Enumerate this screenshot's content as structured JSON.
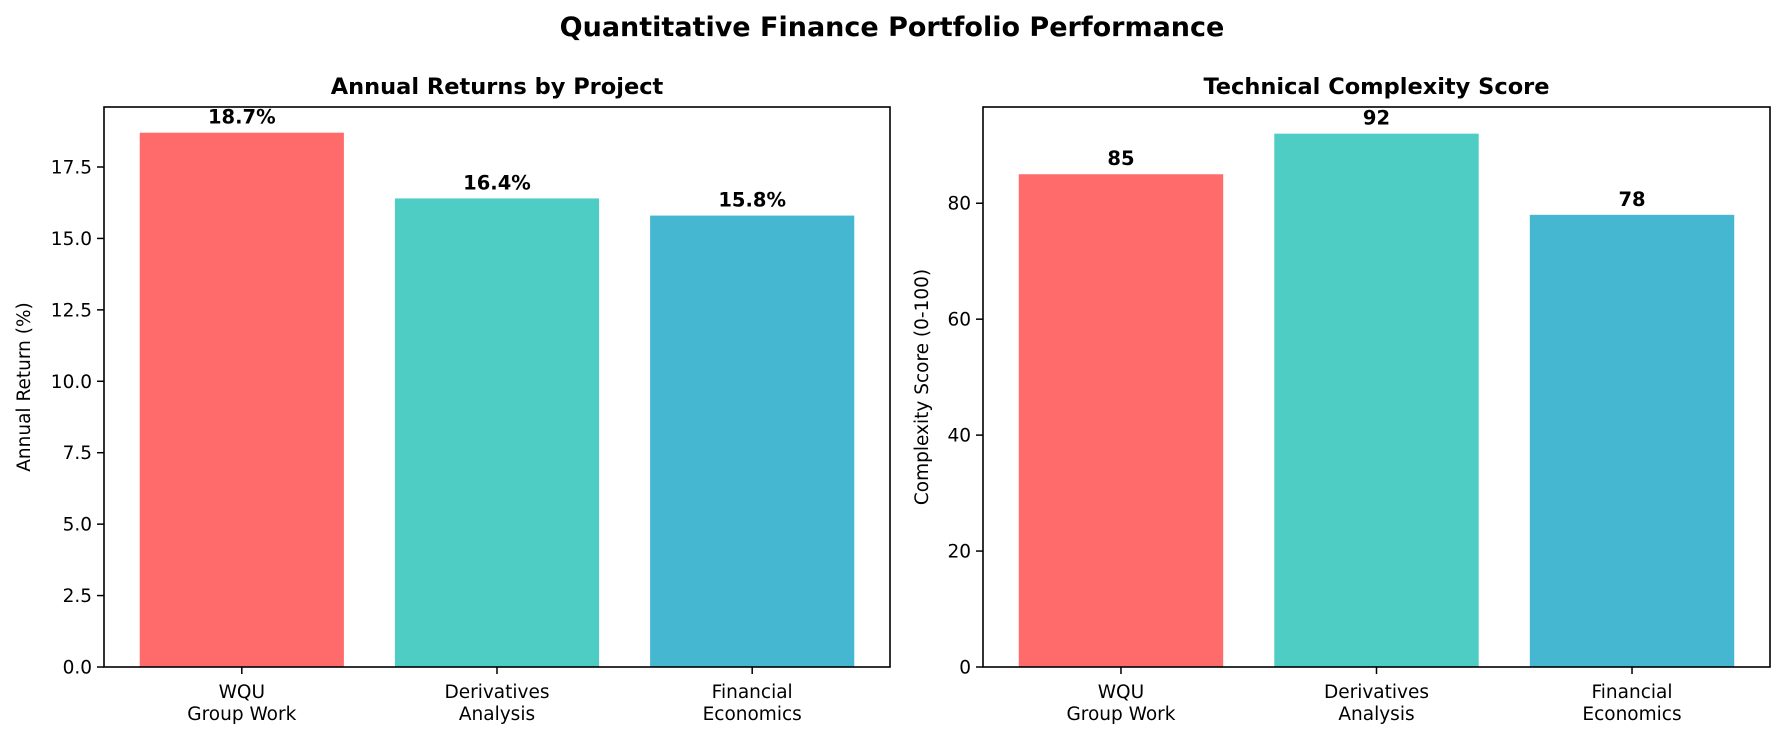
{
  "figure": {
    "title": "Quantitative Finance Portfolio Performance"
  },
  "chart_data": [
    {
      "type": "bar",
      "title": "Annual Returns by Project",
      "xlabel": "",
      "ylabel": "Annual Return (%)",
      "categories": [
        [
          "WQU",
          "Group Work"
        ],
        [
          "Derivatives",
          "Analysis"
        ],
        [
          "Financial",
          "Economics"
        ]
      ],
      "values": [
        18.7,
        16.4,
        15.8
      ],
      "data_labels": [
        "18.7%",
        "16.4%",
        "15.8%"
      ],
      "colors": [
        "#FF6B6B",
        "#4ECDC4",
        "#45B7D1"
      ],
      "ylim": [
        0,
        19.6
      ],
      "yticks": [
        0,
        2.5,
        5,
        7.5,
        10,
        12.5,
        15,
        17.5
      ],
      "ytick_labels": [
        "0.0",
        "2.5",
        "5.0",
        "7.5",
        "10.0",
        "12.5",
        "15.0",
        "17.5"
      ],
      "grid": false,
      "legend": "none"
    },
    {
      "type": "bar",
      "title": "Technical Complexity Score",
      "xlabel": "",
      "ylabel": "Complexity Score (0-100)",
      "categories": [
        [
          "WQU",
          "Group Work"
        ],
        [
          "Derivatives",
          "Analysis"
        ],
        [
          "Financial",
          "Economics"
        ]
      ],
      "values": [
        85,
        92,
        78
      ],
      "data_labels": [
        "85",
        "92",
        "78"
      ],
      "colors": [
        "#FF6B6B",
        "#4ECDC4",
        "#45B7D1"
      ],
      "ylim": [
        0,
        96.6
      ],
      "yticks": [
        0,
        20,
        40,
        60,
        80
      ],
      "ytick_labels": [
        "0",
        "20",
        "40",
        "60",
        "80"
      ],
      "grid": false,
      "legend": "none"
    }
  ]
}
